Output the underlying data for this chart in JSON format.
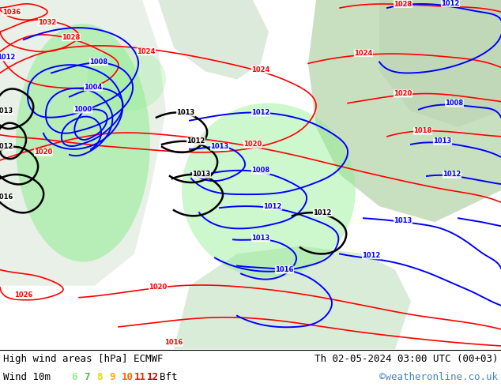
{
  "title_left": "High wind areas [hPa] ECMWF",
  "title_right": "Th 02-05-2024 03:00 UTC (00+03)",
  "subtitle_left": "Wind 10m",
  "subtitle_right": "©weatheronline.co.uk",
  "bft_labels": [
    "6",
    "7",
    "8",
    "9",
    "10",
    "11",
    "12"
  ],
  "bft_colors": [
    "#90ee90",
    "#55bb55",
    "#ffee00",
    "#ffaa00",
    "#ff6600",
    "#ff2200",
    "#cc0000"
  ],
  "bft_suffix": "Bft",
  "footer_bg": "#ffffff",
  "figsize": [
    6.34,
    4.9
  ],
  "dpi": 100,
  "land_color": "#d4eacc",
  "ocean_color": "#cce8cc",
  "highlight_land": "#e8f5e8",
  "wind_green": "#90ee90",
  "footer_line_color": "#000000",
  "map_border_color": "#888888"
}
